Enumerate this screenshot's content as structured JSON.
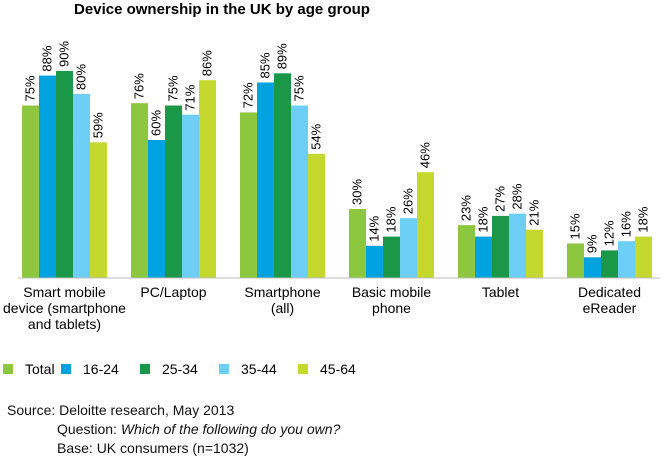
{
  "chart_data": {
    "type": "bar",
    "title": "Device ownership in the UK by age group",
    "categories": [
      [
        "Smart mobile",
        "device (smartphone",
        "and tablets)"
      ],
      [
        "PC/Laptop"
      ],
      [
        "Smartphone",
        "(all)"
      ],
      [
        "Basic mobile",
        "phone"
      ],
      [
        "Tablet"
      ],
      [
        "Dedicated",
        "eReader"
      ]
    ],
    "series": [
      {
        "name": "Total",
        "color": "#8dc63f",
        "values": [
          75,
          76,
          72,
          30,
          23,
          15
        ]
      },
      {
        "name": "16-24",
        "color": "#00a3e0",
        "values": [
          88,
          60,
          85,
          14,
          18,
          9
        ]
      },
      {
        "name": "25-34",
        "color": "#1a9848",
        "values": [
          90,
          75,
          89,
          18,
          27,
          12
        ]
      },
      {
        "name": "35-44",
        "color": "#6dcff6",
        "values": [
          80,
          71,
          75,
          26,
          28,
          16
        ]
      },
      {
        "name": "45-64",
        "color": "#c4d82e",
        "values": [
          59,
          86,
          54,
          46,
          21,
          18
        ]
      }
    ],
    "value_suffix": "%",
    "ylim": [
      0,
      100
    ],
    "legend_position": "bottom",
    "grid": false
  },
  "footer": {
    "source": "Source: Deloitte research, May 2013",
    "question_label": "Question:",
    "question_text": "Which of the following do you own?",
    "base": "Base: UK consumers (n=1032)"
  }
}
